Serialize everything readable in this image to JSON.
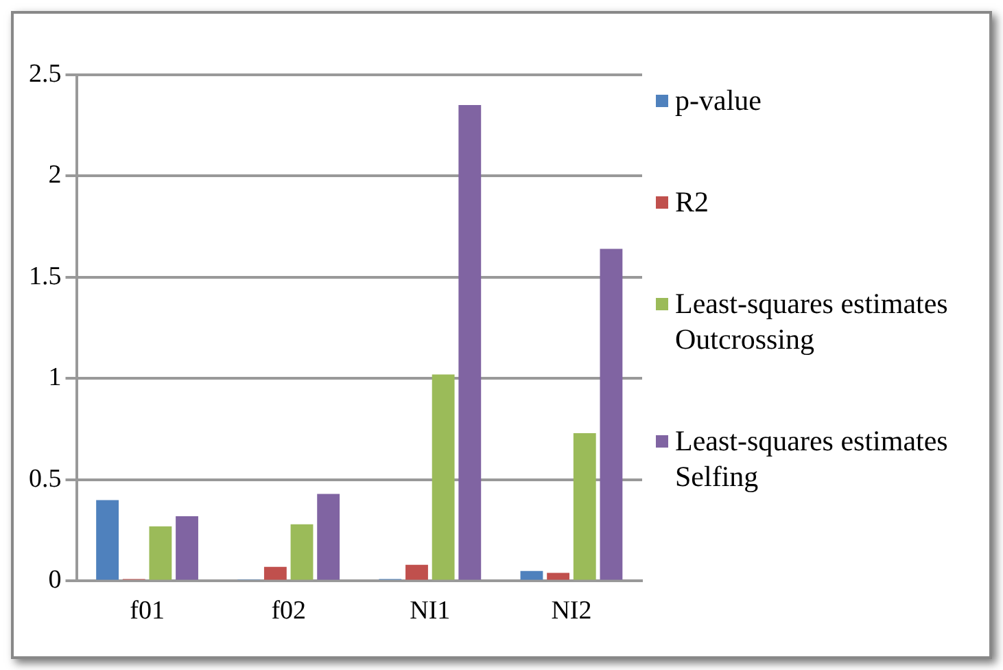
{
  "chart_data": {
    "type": "bar",
    "categories": [
      "f01",
      "f02",
      "NI1",
      "NI2"
    ],
    "series": [
      {
        "name": "p-value",
        "color": "#4f81bd",
        "values": [
          0.4,
          0.005,
          0.01,
          0.05
        ]
      },
      {
        "name": "R2",
        "color": "#c0504d",
        "values": [
          0.01,
          0.07,
          0.08,
          0.04
        ]
      },
      {
        "name": "Least-squares estimates Outcrossing",
        "color": "#9bbb59",
        "values": [
          0.27,
          0.28,
          1.02,
          0.73
        ]
      },
      {
        "name": "Least-squares estimates Selfing",
        "color": "#8064a2",
        "values": [
          0.32,
          0.43,
          2.35,
          1.64
        ]
      }
    ],
    "ylim": [
      0,
      2.5
    ],
    "yticks": [
      0,
      0.5,
      1,
      1.5,
      2,
      2.5
    ],
    "grid": "y",
    "legend": "right"
  }
}
